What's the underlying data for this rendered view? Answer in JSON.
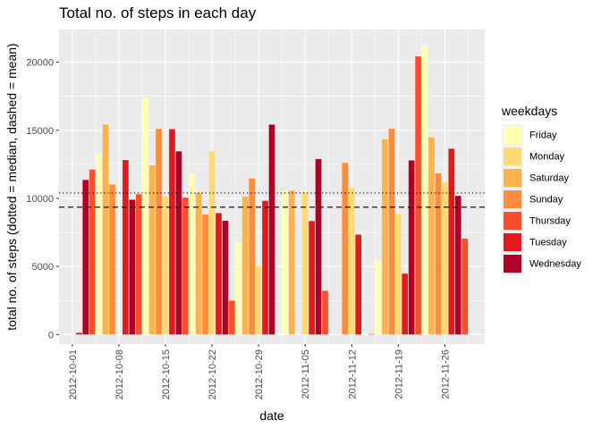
{
  "chart_data": {
    "type": "bar",
    "title": "Total no. of steps in each day",
    "xlabel": "date",
    "ylabel": "total no. of steps (dotted = median, dashed = mean)",
    "ylim": [
      -700,
      22400
    ],
    "xlim": [
      "2012-09-29",
      "2012-12-02"
    ],
    "grid": true,
    "y_ticks": [
      0,
      5000,
      10000,
      15000,
      20000
    ],
    "x_ticks": [
      "2012-10-01",
      "2012-10-08",
      "2012-10-15",
      "2012-10-22",
      "2012-10-29",
      "2012-11-05",
      "2012-11-12",
      "2012-11-19",
      "2012-11-26"
    ],
    "median_line": 10395,
    "mean_line": 9354,
    "legend": {
      "title": "weekdays",
      "position": "right",
      "entries": [
        {
          "name": "Friday",
          "color": "#FFFFB2"
        },
        {
          "name": "Monday",
          "color": "#FED976"
        },
        {
          "name": "Saturday",
          "color": "#FEB24C"
        },
        {
          "name": "Sunday",
          "color": "#FD8D3C"
        },
        {
          "name": "Thursday",
          "color": "#FC4E2A"
        },
        {
          "name": "Tuesday",
          "color": "#E31A1C"
        },
        {
          "name": "Wednesday",
          "color": "#B10026"
        }
      ]
    },
    "points": [
      {
        "date": "2012-10-01",
        "weekday": "Monday",
        "value": 0
      },
      {
        "date": "2012-10-02",
        "weekday": "Tuesday",
        "value": 126
      },
      {
        "date": "2012-10-03",
        "weekday": "Wednesday",
        "value": 11352
      },
      {
        "date": "2012-10-04",
        "weekday": "Thursday",
        "value": 12116
      },
      {
        "date": "2012-10-05",
        "weekday": "Friday",
        "value": 13294
      },
      {
        "date": "2012-10-06",
        "weekday": "Saturday",
        "value": 15420
      },
      {
        "date": "2012-10-07",
        "weekday": "Sunday",
        "value": 11015
      },
      {
        "date": "2012-10-08",
        "weekday": "Monday",
        "value": 0
      },
      {
        "date": "2012-10-09",
        "weekday": "Tuesday",
        "value": 12811
      },
      {
        "date": "2012-10-10",
        "weekday": "Wednesday",
        "value": 9900
      },
      {
        "date": "2012-10-11",
        "weekday": "Thursday",
        "value": 10304
      },
      {
        "date": "2012-10-12",
        "weekday": "Friday",
        "value": 17382
      },
      {
        "date": "2012-10-13",
        "weekday": "Saturday",
        "value": 12426
      },
      {
        "date": "2012-10-14",
        "weekday": "Sunday",
        "value": 15098
      },
      {
        "date": "2012-10-15",
        "weekday": "Monday",
        "value": 10139
      },
      {
        "date": "2012-10-16",
        "weekday": "Tuesday",
        "value": 15084
      },
      {
        "date": "2012-10-17",
        "weekday": "Wednesday",
        "value": 13452
      },
      {
        "date": "2012-10-18",
        "weekday": "Thursday",
        "value": 10056
      },
      {
        "date": "2012-10-19",
        "weekday": "Friday",
        "value": 11829
      },
      {
        "date": "2012-10-20",
        "weekday": "Saturday",
        "value": 10395
      },
      {
        "date": "2012-10-21",
        "weekday": "Sunday",
        "value": 8821
      },
      {
        "date": "2012-10-22",
        "weekday": "Monday",
        "value": 13460
      },
      {
        "date": "2012-10-23",
        "weekday": "Tuesday",
        "value": 8918
      },
      {
        "date": "2012-10-24",
        "weekday": "Wednesday",
        "value": 8355
      },
      {
        "date": "2012-10-25",
        "weekday": "Thursday",
        "value": 2492
      },
      {
        "date": "2012-10-26",
        "weekday": "Friday",
        "value": 6778
      },
      {
        "date": "2012-10-27",
        "weekday": "Saturday",
        "value": 10119
      },
      {
        "date": "2012-10-28",
        "weekday": "Sunday",
        "value": 11458
      },
      {
        "date": "2012-10-29",
        "weekday": "Monday",
        "value": 5018
      },
      {
        "date": "2012-10-30",
        "weekday": "Tuesday",
        "value": 9819
      },
      {
        "date": "2012-10-31",
        "weekday": "Wednesday",
        "value": 15414
      },
      {
        "date": "2012-11-01",
        "weekday": "Thursday",
        "value": 0
      },
      {
        "date": "2012-11-02",
        "weekday": "Friday",
        "value": 10600
      },
      {
        "date": "2012-11-03",
        "weekday": "Saturday",
        "value": 10571
      },
      {
        "date": "2012-11-04",
        "weekday": "Sunday",
        "value": 0
      },
      {
        "date": "2012-11-05",
        "weekday": "Monday",
        "value": 10439
      },
      {
        "date": "2012-11-06",
        "weekday": "Tuesday",
        "value": 8334
      },
      {
        "date": "2012-11-07",
        "weekday": "Wednesday",
        "value": 12883
      },
      {
        "date": "2012-11-08",
        "weekday": "Thursday",
        "value": 3219
      },
      {
        "date": "2012-11-09",
        "weekday": "Friday",
        "value": 0
      },
      {
        "date": "2012-11-10",
        "weekday": "Saturday",
        "value": 0
      },
      {
        "date": "2012-11-11",
        "weekday": "Sunday",
        "value": 12608
      },
      {
        "date": "2012-11-12",
        "weekday": "Monday",
        "value": 10765
      },
      {
        "date": "2012-11-13",
        "weekday": "Tuesday",
        "value": 7336
      },
      {
        "date": "2012-11-14",
        "weekday": "Wednesday",
        "value": 0
      },
      {
        "date": "2012-11-15",
        "weekday": "Thursday",
        "value": 41
      },
      {
        "date": "2012-11-16",
        "weekday": "Friday",
        "value": 5441
      },
      {
        "date": "2012-11-17",
        "weekday": "Saturday",
        "value": 14339
      },
      {
        "date": "2012-11-18",
        "weekday": "Sunday",
        "value": 15110
      },
      {
        "date": "2012-11-19",
        "weekday": "Monday",
        "value": 8841
      },
      {
        "date": "2012-11-20",
        "weekday": "Tuesday",
        "value": 4472
      },
      {
        "date": "2012-11-21",
        "weekday": "Wednesday",
        "value": 12787
      },
      {
        "date": "2012-11-22",
        "weekday": "Thursday",
        "value": 20427
      },
      {
        "date": "2012-11-23",
        "weekday": "Friday",
        "value": 21194
      },
      {
        "date": "2012-11-24",
        "weekday": "Saturday",
        "value": 14478
      },
      {
        "date": "2012-11-25",
        "weekday": "Sunday",
        "value": 11834
      },
      {
        "date": "2012-11-26",
        "weekday": "Monday",
        "value": 11162
      },
      {
        "date": "2012-11-27",
        "weekday": "Tuesday",
        "value": 13646
      },
      {
        "date": "2012-11-28",
        "weekday": "Wednesday",
        "value": 10183
      },
      {
        "date": "2012-11-29",
        "weekday": "Thursday",
        "value": 7047
      },
      {
        "date": "2012-11-30",
        "weekday": "Friday",
        "value": 0
      }
    ]
  }
}
